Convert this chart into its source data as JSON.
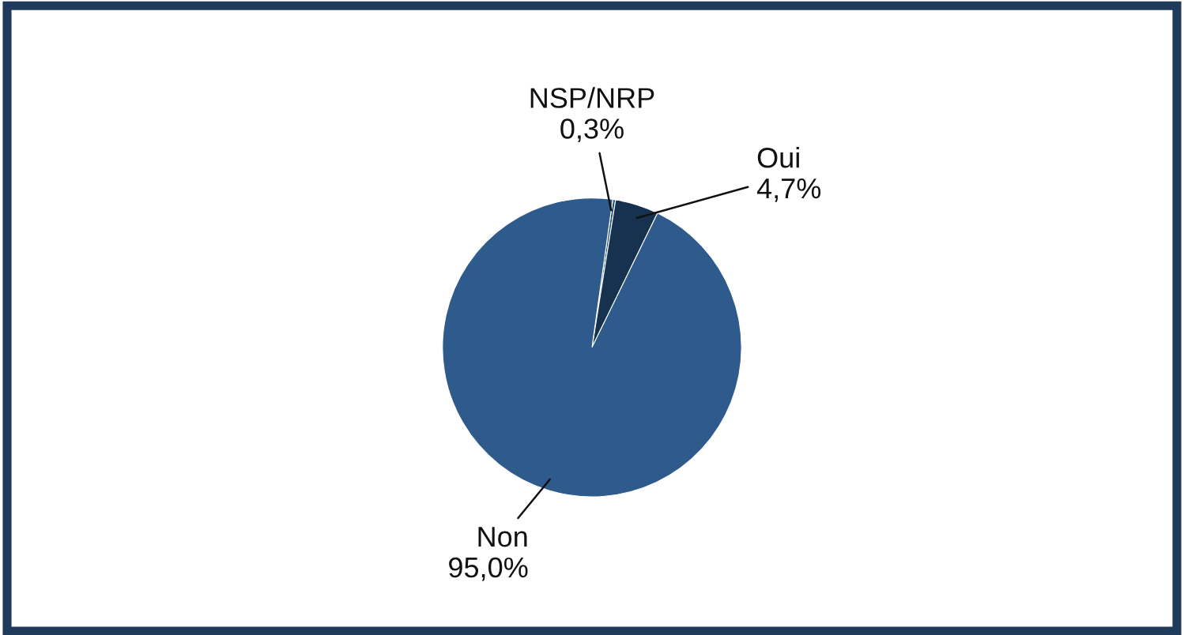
{
  "chart_data": {
    "type": "pie",
    "categories": [
      "NSP/NRP",
      "Oui",
      "Non"
    ],
    "values": [
      0.3,
      4.7,
      95.0
    ],
    "value_labels": [
      "0,3%",
      "4,7%",
      "95,0%"
    ],
    "colors": [
      "#24507a",
      "#17324f",
      "#2e5b8c"
    ]
  }
}
